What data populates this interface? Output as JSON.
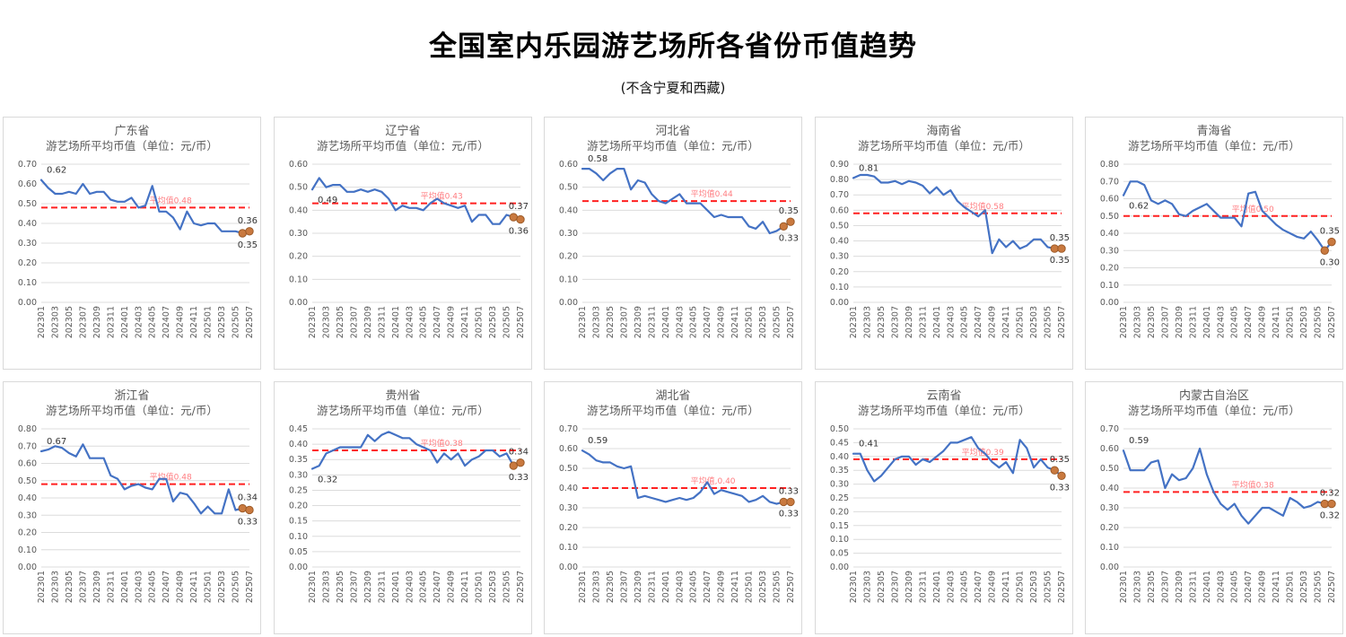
{
  "page": {
    "title": "全国室内乐园游艺场所各省份币值趋势",
    "subtitle": "(不含宁夏和西藏)"
  },
  "colors": {
    "line": "#4472C4",
    "average_line": "#FF2020",
    "average_label": "#FF7C80",
    "marker_fill": "#C9793F",
    "marker_stroke": "#9C5A28",
    "grid": "#DCDCDC",
    "axis_text": "#595959",
    "chart_title_text": "#595959",
    "data_label_text": "#333333"
  },
  "chart_data": {
    "type": "line",
    "chart_subtitle": "游艺场所平均币值（单位：元/币）",
    "categories": [
      "202301",
      "202302",
      "202303",
      "202304",
      "202305",
      "202306",
      "202307",
      "202308",
      "202309",
      "202310",
      "202311",
      "202312",
      "202401",
      "202402",
      "202403",
      "202404",
      "202405",
      "202406",
      "202407",
      "202408",
      "202409",
      "202410",
      "202411",
      "202412",
      "202501",
      "202502",
      "202503",
      "202504",
      "202505",
      "202506",
      "202507"
    ],
    "x_tick_labels": [
      "202301",
      "202303",
      "202305",
      "202307",
      "202309",
      "202311",
      "202401",
      "202403",
      "202405",
      "202407",
      "202409",
      "202411",
      "202501",
      "202503",
      "202505",
      "202507"
    ],
    "charts": [
      {
        "title": "广东省",
        "ylim": [
          0,
          0.7
        ],
        "ytick_step": 0.1,
        "average": 0.48,
        "average_label": "平均值0.48",
        "first_label": "0.62",
        "first_label_side": "above",
        "end_label_top": "0.36",
        "end_label_bottom": "0.35",
        "values": [
          0.62,
          0.58,
          0.55,
          0.55,
          0.56,
          0.55,
          0.6,
          0.55,
          0.56,
          0.56,
          0.52,
          0.51,
          0.51,
          0.53,
          0.48,
          0.49,
          0.59,
          0.46,
          0.46,
          0.43,
          0.37,
          0.46,
          0.4,
          0.39,
          0.4,
          0.4,
          0.36,
          0.36,
          0.36,
          0.35,
          0.36
        ]
      },
      {
        "title": "辽宁省",
        "ylim": [
          0,
          0.6
        ],
        "ytick_step": 0.1,
        "average": 0.43,
        "average_label": "平均值0.43",
        "first_label": "0.49",
        "first_label_side": "below",
        "end_label_top": "0.37",
        "end_label_bottom": "0.36",
        "values": [
          0.49,
          0.54,
          0.5,
          0.51,
          0.51,
          0.48,
          0.48,
          0.49,
          0.48,
          0.49,
          0.48,
          0.45,
          0.4,
          0.42,
          0.41,
          0.41,
          0.4,
          0.43,
          0.45,
          0.43,
          0.42,
          0.41,
          0.42,
          0.35,
          0.38,
          0.38,
          0.34,
          0.34,
          0.38,
          0.37,
          0.36
        ]
      },
      {
        "title": "河北省",
        "ylim": [
          0,
          0.6
        ],
        "ytick_step": 0.1,
        "average": 0.44,
        "average_label": "平均值0.44",
        "first_label": "0.58",
        "first_label_side": "above",
        "end_label_top": "0.35",
        "end_label_bottom": "0.33",
        "values": [
          0.58,
          0.58,
          0.56,
          0.53,
          0.56,
          0.58,
          0.58,
          0.49,
          0.53,
          0.52,
          0.47,
          0.44,
          0.43,
          0.45,
          0.47,
          0.43,
          0.43,
          0.43,
          0.4,
          0.37,
          0.38,
          0.37,
          0.37,
          0.37,
          0.33,
          0.32,
          0.35,
          0.3,
          0.31,
          0.33,
          0.35
        ]
      },
      {
        "title": "海南省",
        "ylim": [
          0,
          0.9
        ],
        "ytick_step": 0.1,
        "average": 0.58,
        "average_label": "平均值0.58",
        "first_label": "0.81",
        "first_label_side": "above",
        "end_label_top": "0.35",
        "end_label_bottom": "0.35",
        "values": [
          0.81,
          0.83,
          0.83,
          0.82,
          0.78,
          0.78,
          0.79,
          0.77,
          0.79,
          0.78,
          0.76,
          0.71,
          0.75,
          0.7,
          0.73,
          0.66,
          0.62,
          0.59,
          0.56,
          0.6,
          0.32,
          0.41,
          0.36,
          0.4,
          0.35,
          0.37,
          0.41,
          0.41,
          0.36,
          0.35,
          0.35
        ]
      },
      {
        "title": "青海省",
        "ylim": [
          0,
          0.8
        ],
        "ytick_step": 0.1,
        "average": 0.5,
        "average_label": "平均值0.50",
        "first_label": "0.62",
        "first_label_side": "below",
        "end_label_top": "0.35",
        "end_label_bottom": "0.30",
        "values": [
          0.62,
          0.7,
          0.7,
          0.68,
          0.59,
          0.57,
          0.59,
          0.57,
          0.51,
          0.5,
          0.53,
          0.55,
          0.57,
          0.53,
          0.49,
          0.49,
          0.49,
          0.44,
          0.63,
          0.64,
          0.53,
          0.49,
          0.45,
          0.42,
          0.4,
          0.38,
          0.37,
          0.41,
          0.36,
          0.3,
          0.35
        ]
      },
      {
        "title": "浙江省",
        "ylim": [
          0,
          0.8
        ],
        "ytick_step": 0.1,
        "average": 0.48,
        "average_label": "平均值0.48",
        "first_label": "0.67",
        "first_label_side": "above",
        "end_label_top": "0.34",
        "end_label_bottom": "0.33",
        "values": [
          0.67,
          0.68,
          0.7,
          0.69,
          0.66,
          0.64,
          0.71,
          0.63,
          0.63,
          0.63,
          0.53,
          0.51,
          0.45,
          0.47,
          0.48,
          0.46,
          0.45,
          0.51,
          0.51,
          0.38,
          0.43,
          0.42,
          0.37,
          0.31,
          0.35,
          0.31,
          0.31,
          0.45,
          0.33,
          0.34,
          0.33
        ]
      },
      {
        "title": "贵州省",
        "ylim": [
          0,
          0.45
        ],
        "ytick_step": 0.05,
        "average": 0.38,
        "average_label": "平均值0.38",
        "first_label": "0.32",
        "first_label_side": "below",
        "end_label_top": "0.34",
        "end_label_bottom": "0.33",
        "values": [
          0.32,
          0.33,
          0.37,
          0.38,
          0.39,
          0.39,
          0.39,
          0.39,
          0.43,
          0.41,
          0.43,
          0.44,
          0.43,
          0.42,
          0.42,
          0.4,
          0.39,
          0.38,
          0.34,
          0.37,
          0.35,
          0.37,
          0.33,
          0.35,
          0.36,
          0.38,
          0.38,
          0.36,
          0.37,
          0.33,
          0.34
        ]
      },
      {
        "title": "湖北省",
        "ylim": [
          0,
          0.7
        ],
        "ytick_step": 0.1,
        "average": 0.4,
        "average_label": "平均值,0.40",
        "first_label": "0.59",
        "first_label_side": "above",
        "end_label_top": "0.33",
        "end_label_bottom": "0.33",
        "values": [
          0.59,
          0.57,
          0.54,
          0.53,
          0.53,
          0.51,
          0.5,
          0.51,
          0.35,
          0.36,
          0.35,
          0.34,
          0.33,
          0.34,
          0.35,
          0.34,
          0.35,
          0.38,
          0.43,
          0.37,
          0.39,
          0.38,
          0.37,
          0.36,
          0.33,
          0.34,
          0.36,
          0.33,
          0.32,
          0.33,
          0.33
        ]
      },
      {
        "title": "云南省",
        "ylim": [
          0,
          0.5
        ],
        "ytick_step": 0.05,
        "average": 0.39,
        "average_label": "平均值0.39",
        "first_label": "0.41",
        "first_label_side": "above",
        "end_label_top": "0.35",
        "end_label_bottom": "0.33",
        "values": [
          0.41,
          0.41,
          0.35,
          0.31,
          0.33,
          0.36,
          0.39,
          0.4,
          0.4,
          0.37,
          0.39,
          0.38,
          0.4,
          0.42,
          0.45,
          0.45,
          0.46,
          0.47,
          0.43,
          0.41,
          0.38,
          0.36,
          0.38,
          0.34,
          0.46,
          0.43,
          0.36,
          0.39,
          0.36,
          0.35,
          0.33
        ]
      },
      {
        "title": "内蒙古自治区",
        "ylim": [
          0,
          0.7
        ],
        "ytick_step": 0.1,
        "average": 0.38,
        "average_label": "平均值0.38",
        "first_label": "0.59",
        "first_label_side": "above",
        "end_label_top": "0.32",
        "end_label_bottom": "0.32",
        "values": [
          0.59,
          0.49,
          0.49,
          0.49,
          0.53,
          0.54,
          0.4,
          0.47,
          0.44,
          0.45,
          0.5,
          0.6,
          0.47,
          0.38,
          0.32,
          0.29,
          0.32,
          0.26,
          0.22,
          0.26,
          0.3,
          0.3,
          0.28,
          0.26,
          0.35,
          0.33,
          0.3,
          0.31,
          0.33,
          0.32,
          0.32
        ]
      }
    ]
  }
}
